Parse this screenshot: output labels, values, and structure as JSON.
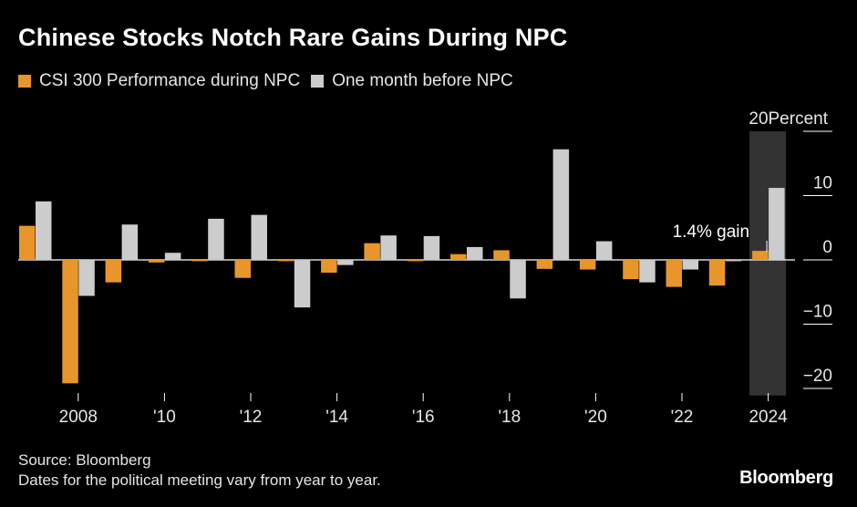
{
  "title": "Chinese Stocks Notch Rare Gains During NPC",
  "legend": [
    {
      "label": "CSI 300 Performance during NPC",
      "color": "#e8952b"
    },
    {
      "label": "One month before NPC",
      "color": "#cccccc"
    }
  ],
  "source_line1": "Source: Bloomberg",
  "source_line2": "Dates for the political meeting vary from year to year.",
  "brand": "Bloomberg",
  "chart_data": {
    "type": "bar",
    "categories": [
      "2007",
      "2008",
      "2009",
      "2010",
      "2011",
      "2012",
      "2013",
      "2014",
      "2015",
      "2016",
      "2017",
      "2018",
      "2019",
      "2020",
      "2021",
      "2022",
      "2023",
      "2024"
    ],
    "x_tick_labels": [
      "2008",
      "'10",
      "'12",
      "'14",
      "'16",
      "'18",
      "'20",
      "'22",
      "2024"
    ],
    "series": [
      {
        "name": "CSI 300 Performance during NPC",
        "color": "#e8952b",
        "values": [
          5.3,
          -19.2,
          -3.5,
          -0.4,
          -0.2,
          -2.8,
          -0.2,
          -2.0,
          2.6,
          -0.2,
          0.9,
          1.5,
          -1.4,
          -1.5,
          -3.0,
          -4.2,
          -4.0,
          1.4
        ]
      },
      {
        "name": "One month before NPC",
        "color": "#cccccc",
        "values": [
          9.1,
          -5.6,
          5.5,
          1.1,
          6.4,
          7.0,
          -7.4,
          -0.8,
          3.8,
          3.7,
          2.0,
          -6.0,
          17.2,
          2.9,
          -3.5,
          -1.5,
          -0.2,
          11.2
        ]
      }
    ],
    "y_ticks": [
      20,
      10,
      0,
      -10,
      -20
    ],
    "y_unit_label": "Percent",
    "ylim": [
      -20.5,
      20
    ],
    "annotation": "1.4% gain",
    "highlight_category": "2024"
  }
}
